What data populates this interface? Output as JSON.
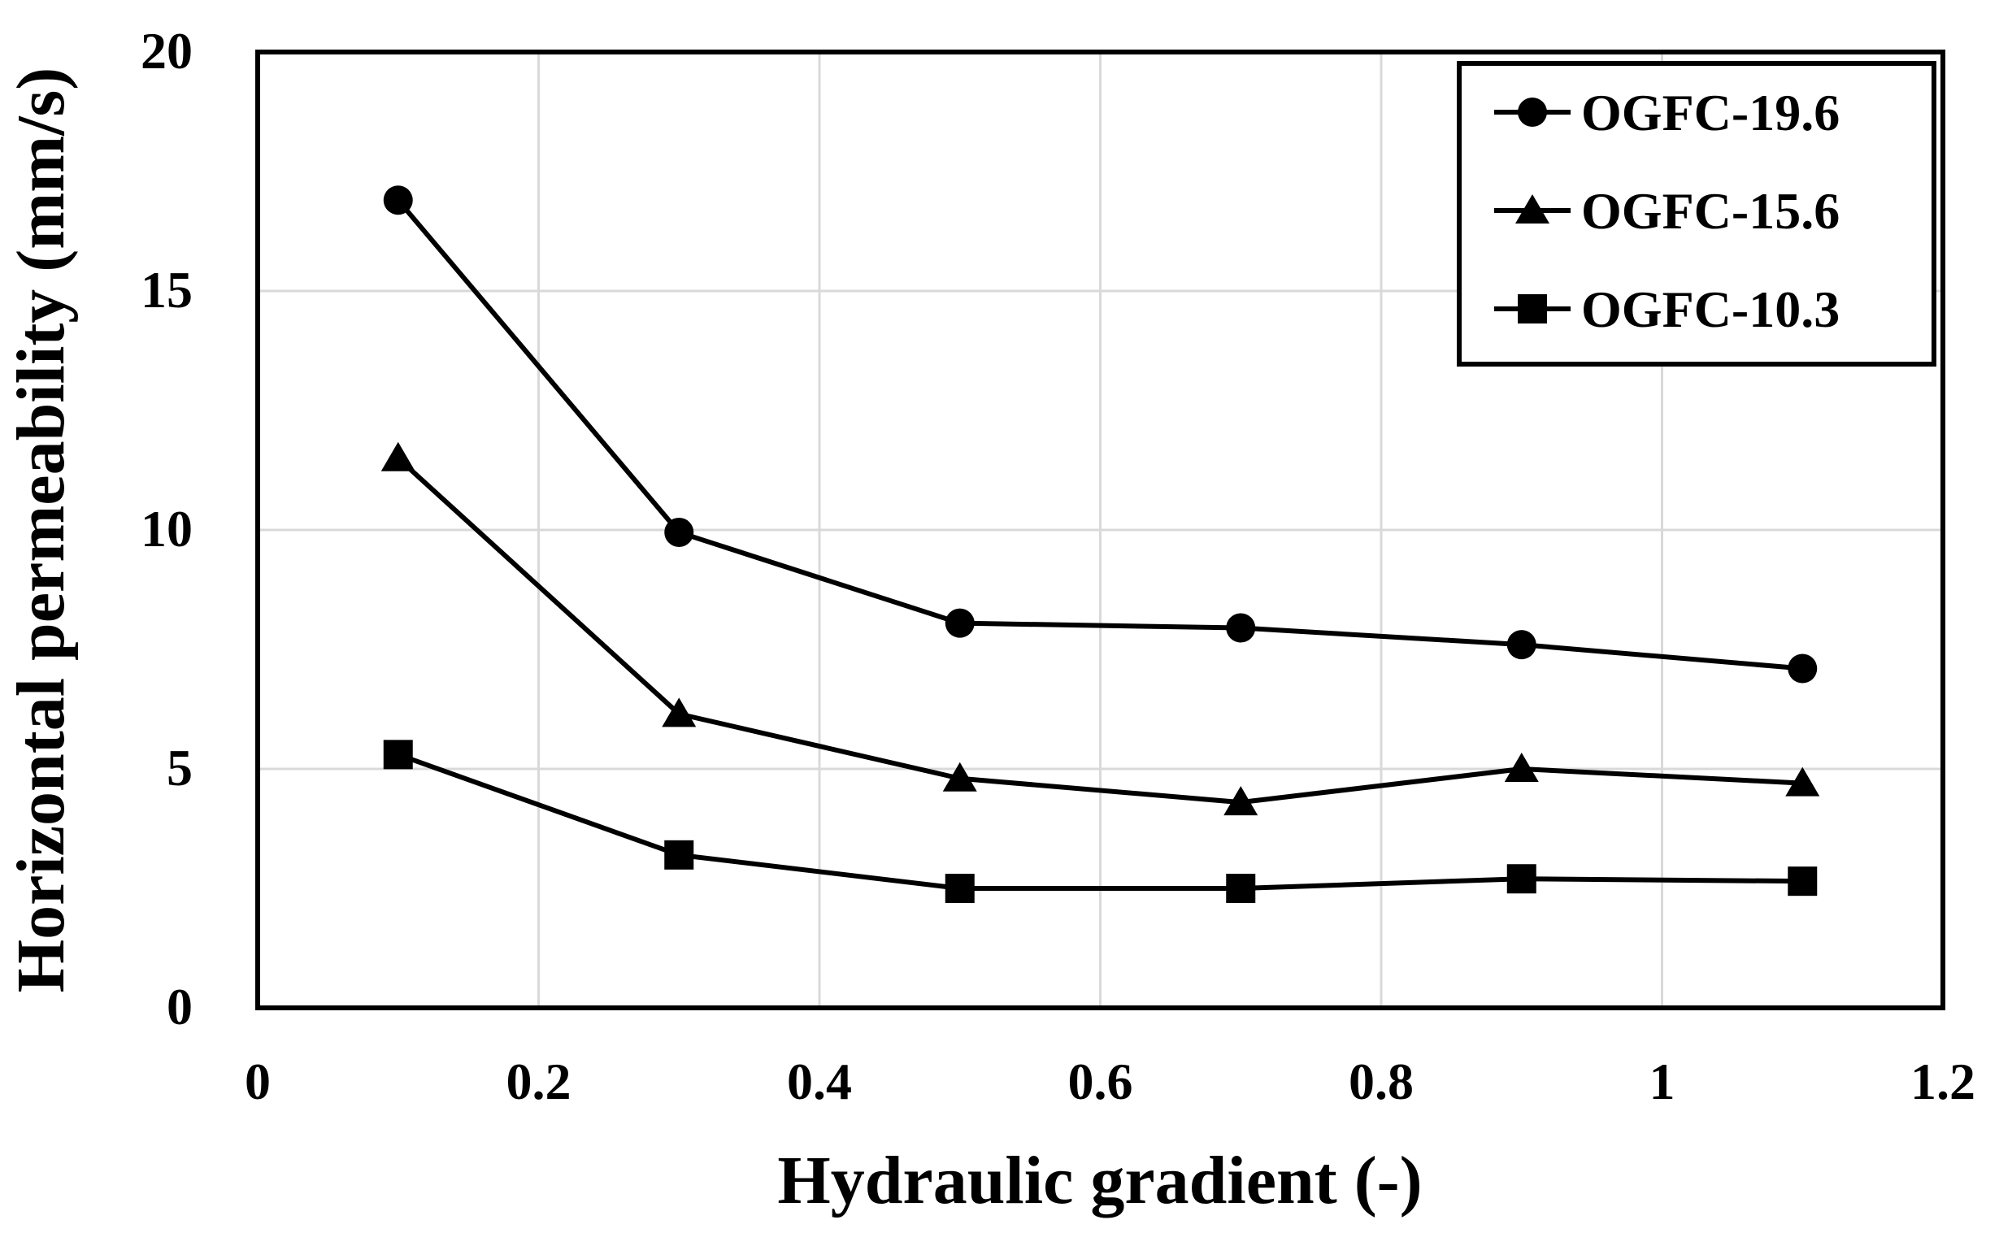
{
  "chart_data": {
    "type": "line",
    "title": "",
    "xlabel": "Hydraulic gradient (-)",
    "ylabel": "Horizontal permeability (mm/s)",
    "xlim": [
      0,
      1.2
    ],
    "ylim": [
      0,
      20
    ],
    "xticks": [
      0,
      0.2,
      0.4,
      0.6,
      0.8,
      1,
      1.2
    ],
    "yticks": [
      0,
      5,
      10,
      15,
      20
    ],
    "xtick_labels": [
      "0",
      "0.2",
      "0.4",
      "0.6",
      "0.8",
      "1",
      "1.2"
    ],
    "ytick_labels": [
      "0",
      "5",
      "10",
      "15",
      "20"
    ],
    "grid": true,
    "legend_position": "top-right",
    "x": [
      0.1,
      0.3,
      0.5,
      0.7,
      0.9,
      1.1
    ],
    "series": [
      {
        "name": "OGFC-19.6",
        "marker": "circle",
        "values": [
          16.9,
          9.95,
          8.05,
          7.95,
          7.6,
          7.1
        ]
      },
      {
        "name": "OGFC-15.6",
        "marker": "triangle",
        "values": [
          11.5,
          6.15,
          4.8,
          4.3,
          5.0,
          4.7
        ]
      },
      {
        "name": "OGFC-10.3",
        "marker": "square",
        "values": [
          5.3,
          3.2,
          2.5,
          2.5,
          2.7,
          2.65
        ]
      }
    ]
  }
}
